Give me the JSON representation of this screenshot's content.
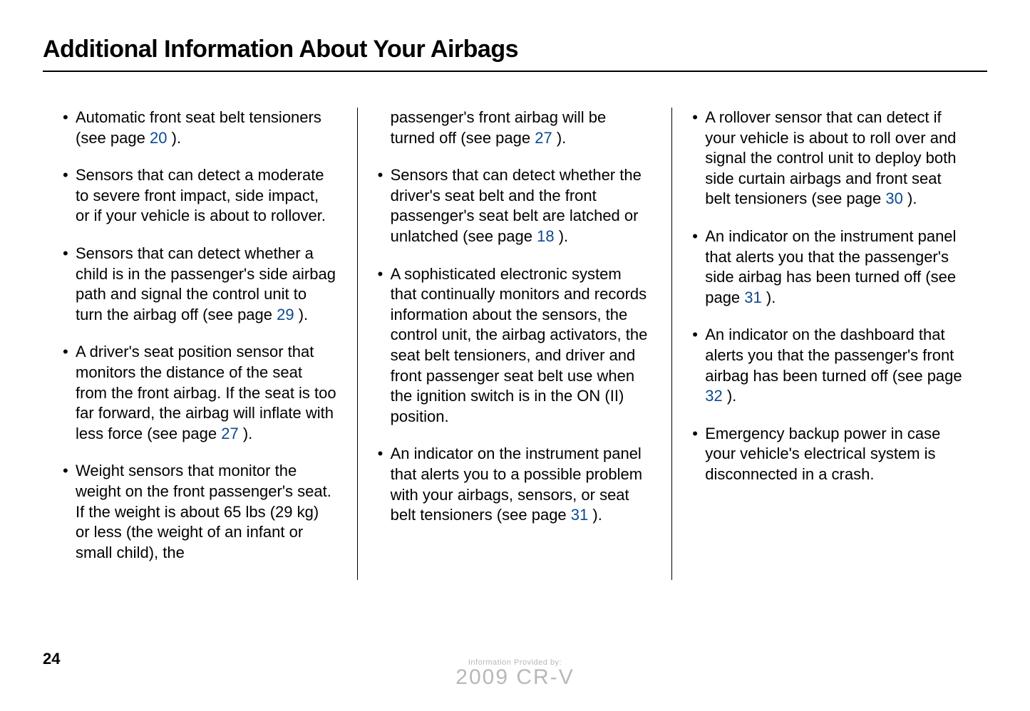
{
  "title": "Additional Information About Your Airbags",
  "page_number": "24",
  "colors": {
    "text": "#000000",
    "link": "#0b4a8f",
    "background": "#ffffff",
    "watermark": "#b8b8b8",
    "rule": "#000000"
  },
  "typography": {
    "title_family": "Arial",
    "title_size_pt": 25,
    "title_weight": "bold",
    "body_family": "Arial",
    "body_size_pt": 16,
    "line_height": 1.3
  },
  "columns": [
    {
      "items": [
        {
          "type": "bullet",
          "pre": "Automatic front seat belt tensioners (see page ",
          "link": "20",
          "post": " )."
        },
        {
          "type": "bullet",
          "pre": "Sensors that can detect a moderate to severe front impact, side impact, or if your vehicle is about to rollover.",
          "link": null,
          "post": ""
        },
        {
          "type": "bullet",
          "pre": "Sensors that can detect whether a child is in the passenger's side airbag path and signal the control unit to turn the airbag off (see page ",
          "link": "29",
          "post": " )."
        },
        {
          "type": "bullet",
          "pre": "A driver's seat position sensor that monitors the distance of the seat from the front airbag. If the seat is too far forward, the airbag will inflate with less force (see page ",
          "link": "27",
          "post": " )."
        },
        {
          "type": "bullet",
          "pre": "Weight sensors that monitor the weight on the front passenger's seat. If the weight is about 65 lbs (29 kg) or less (the weight of an infant or small child), the",
          "link": null,
          "post": ""
        }
      ]
    },
    {
      "items": [
        {
          "type": "continuation",
          "pre": "passenger's front airbag will be turned off (see page ",
          "link": "27",
          "post": " )."
        },
        {
          "type": "bullet",
          "pre": "Sensors that can detect whether the driver's seat belt and the front passenger's seat belt are latched or unlatched (see page ",
          "link": "18",
          "post": " )."
        },
        {
          "type": "bullet",
          "pre": "A sophisticated electronic system that continually monitors and records information about the sensors, the control unit, the airbag activators, the seat belt tensioners, and driver and front passenger seat belt use when the ignition switch is in the ON (II) position.",
          "link": null,
          "post": ""
        },
        {
          "type": "bullet",
          "pre": "An indicator on the instrument panel that alerts you to a possible problem with your airbags, sensors, or seat belt tensioners (see page ",
          "link": "31",
          "post": " )."
        }
      ]
    },
    {
      "items": [
        {
          "type": "bullet",
          "pre": "A rollover sensor that can detect if your vehicle is about to roll over and signal the control unit to deploy both side curtain airbags and front seat belt tensioners (see page ",
          "link": "30",
          "post": "  )."
        },
        {
          "type": "bullet",
          "pre": "An indicator on the instrument panel that alerts you that the passenger's side airbag has been turned off (see page ",
          "link": "31",
          "post": " )."
        },
        {
          "type": "bullet",
          "pre": "An indicator on the dashboard that alerts you that the passenger's front airbag has been turned off (see page ",
          "link": "32",
          "post": " )."
        },
        {
          "type": "bullet",
          "pre": "Emergency backup power in case your vehicle's electrical system is disconnected in a crash.",
          "link": null,
          "post": ""
        }
      ]
    }
  ],
  "watermark": {
    "line1": "Information Provided by:",
    "line2": "2009 CR-V"
  }
}
